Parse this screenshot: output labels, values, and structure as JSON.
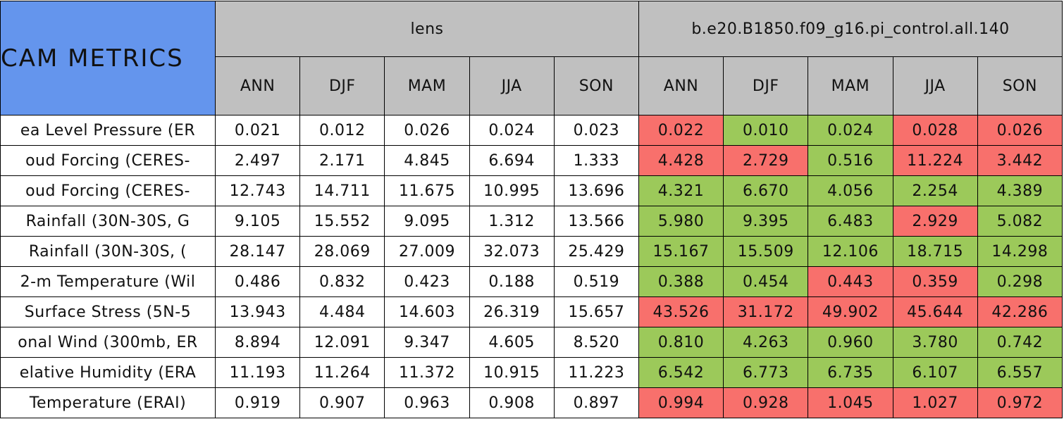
{
  "table": {
    "title": "CAM METRICS",
    "title_color": "#6495ed",
    "header_color": "#c0c0c0",
    "groups": [
      "lens",
      "b.e20.B1850.f09_g16.pi_control.all.140"
    ],
    "seasons": [
      "ANN",
      "DJF",
      "MAM",
      "JJA",
      "SON"
    ],
    "rows": [
      {
        "label": "ea Level Pressure (ER",
        "lens": [
          "0.021",
          "0.012",
          "0.026",
          "0.024",
          "0.023"
        ],
        "test": [
          "0.022",
          "0.010",
          "0.024",
          "0.028",
          "0.026"
        ],
        "colors": [
          "#f8706c",
          "#9cc95a",
          "#9cc95a",
          "#f8706c",
          "#f8706c"
        ]
      },
      {
        "label": "oud Forcing (CERES-",
        "lens": [
          "2.497",
          "2.171",
          "4.845",
          "6.694",
          "1.333"
        ],
        "test": [
          "4.428",
          "2.729",
          "0.516",
          "11.224",
          "3.442"
        ],
        "colors": [
          "#f8706c",
          "#f8706c",
          "#9cc95a",
          "#f8706c",
          "#f8706c"
        ]
      },
      {
        "label": "oud Forcing (CERES-",
        "lens": [
          "12.743",
          "14.711",
          "11.675",
          "10.995",
          "13.696"
        ],
        "test": [
          "4.321",
          "6.670",
          "4.056",
          "2.254",
          "4.389"
        ],
        "colors": [
          "#9cc95a",
          "#9cc95a",
          "#9cc95a",
          "#9cc95a",
          "#9cc95a"
        ]
      },
      {
        "label": "Rainfall (30N-30S, G",
        "lens": [
          "9.105",
          "15.552",
          "9.095",
          "1.312",
          "13.566"
        ],
        "test": [
          "5.980",
          "9.395",
          "6.483",
          "2.929",
          "5.082"
        ],
        "colors": [
          "#9cc95a",
          "#9cc95a",
          "#9cc95a",
          "#f8706c",
          "#9cc95a"
        ]
      },
      {
        "label": "Rainfall (30N-30S, (",
        "lens": [
          "28.147",
          "28.069",
          "27.009",
          "32.073",
          "25.429"
        ],
        "test": [
          "15.167",
          "15.509",
          "12.106",
          "18.715",
          "14.298"
        ],
        "colors": [
          "#9cc95a",
          "#9cc95a",
          "#9cc95a",
          "#9cc95a",
          "#9cc95a"
        ]
      },
      {
        "label": "2-m Temperature (Wil",
        "lens": [
          "0.486",
          "0.832",
          "0.423",
          "0.188",
          "0.519"
        ],
        "test": [
          "0.388",
          "0.454",
          "0.443",
          "0.359",
          "0.298"
        ],
        "colors": [
          "#9cc95a",
          "#9cc95a",
          "#f8706c",
          "#f8706c",
          "#9cc95a"
        ]
      },
      {
        "label": "Surface Stress (5N-5",
        "lens": [
          "13.943",
          "4.484",
          "14.603",
          "26.319",
          "15.657"
        ],
        "test": [
          "43.526",
          "31.172",
          "49.902",
          "45.644",
          "42.286"
        ],
        "colors": [
          "#f8706c",
          "#f8706c",
          "#f8706c",
          "#f8706c",
          "#f8706c"
        ]
      },
      {
        "label": "onal Wind (300mb, ER",
        "lens": [
          "8.894",
          "12.091",
          "9.347",
          "4.605",
          "8.520"
        ],
        "test": [
          "0.810",
          "4.263",
          "0.960",
          "3.780",
          "0.742"
        ],
        "colors": [
          "#9cc95a",
          "#9cc95a",
          "#9cc95a",
          "#9cc95a",
          "#9cc95a"
        ]
      },
      {
        "label": "elative Humidity (ERA",
        "lens": [
          "11.193",
          "11.264",
          "11.372",
          "10.915",
          "11.223"
        ],
        "test": [
          "6.542",
          "6.773",
          "6.735",
          "6.107",
          "6.557"
        ],
        "colors": [
          "#9cc95a",
          "#9cc95a",
          "#9cc95a",
          "#9cc95a",
          "#9cc95a"
        ]
      },
      {
        "label": "Temperature (ERAI)",
        "lens": [
          "0.919",
          "0.907",
          "0.963",
          "0.908",
          "0.897"
        ],
        "test": [
          "0.994",
          "0.928",
          "1.045",
          "1.027",
          "0.972"
        ],
        "colors": [
          "#f8706c",
          "#f8706c",
          "#f8706c",
          "#f8706c",
          "#f8706c"
        ]
      }
    ]
  }
}
